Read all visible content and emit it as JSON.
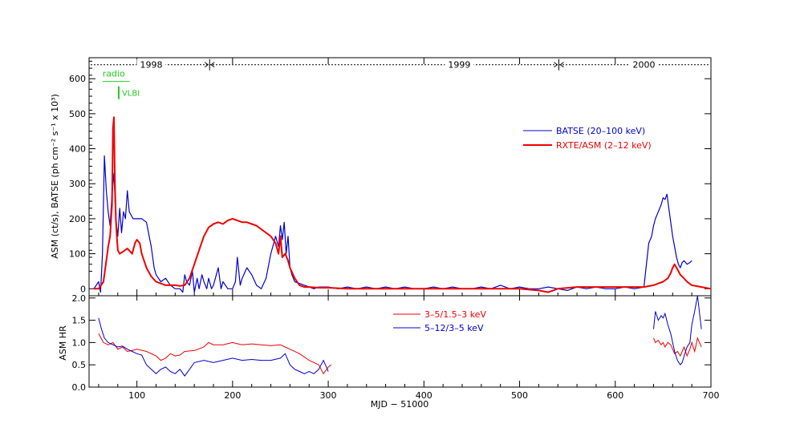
{
  "chart_data": [
    {
      "type": "line",
      "panel": "top",
      "ylabel": "ASM (ct/s), BATSE (ph cm⁻² s⁻¹ x 10³)",
      "xlim": [
        50,
        700
      ],
      "ylim": [
        -20,
        660
      ],
      "yticks": [
        0,
        100,
        200,
        300,
        400,
        500,
        600
      ],
      "tick_labels_y": [
        "0",
        "100",
        "200",
        "300",
        "400",
        "500",
        "600"
      ],
      "year_labels": [
        {
          "text": "1998",
          "x": 115
        },
        {
          "text": "1999",
          "x": 437
        },
        {
          "text": "2000",
          "x": 630
        }
      ],
      "year_boundaries": [
        176,
        541
      ],
      "year_line_y": 640,
      "annotations": {
        "radio": {
          "text": "radio",
          "x": 64,
          "y": 615
        },
        "vlbi": {
          "text": "VLBI",
          "x": 81,
          "y": 560
        }
      },
      "series": [
        {
          "name": "BATSE (20–100 keV)",
          "color": "#0000cc",
          "x": [
            55,
            60,
            62,
            64,
            66,
            68,
            70,
            72,
            74,
            76,
            78,
            80,
            82,
            84,
            86,
            88,
            90,
            92,
            94,
            96,
            100,
            105,
            110,
            115,
            118,
            120,
            125,
            130,
            135,
            140,
            145,
            148,
            150,
            152,
            155,
            158,
            160,
            163,
            165,
            168,
            170,
            173,
            175,
            178,
            180,
            183,
            185,
            188,
            190,
            195,
            200,
            203,
            205,
            208,
            210,
            215,
            220,
            225,
            230,
            235,
            240,
            245,
            248,
            250,
            252,
            254,
            256,
            258,
            260,
            262,
            265,
            270,
            275,
            280,
            285,
            290,
            300,
            310,
            320,
            330,
            340,
            350,
            360,
            370,
            380,
            390,
            400,
            410,
            420,
            430,
            440,
            450,
            460,
            470,
            480,
            490,
            500,
            510,
            520,
            530,
            540,
            550,
            560,
            570,
            580,
            590,
            600,
            610,
            620,
            630,
            635,
            638,
            640,
            642,
            645,
            648,
            650,
            652,
            654,
            656,
            658,
            660,
            662,
            664,
            666,
            668,
            670,
            672,
            675,
            678,
            680
          ],
          "y": [
            0,
            20,
            -10,
            100,
            380,
            280,
            220,
            180,
            270,
            330,
            200,
            150,
            230,
            160,
            220,
            200,
            280,
            220,
            210,
            200,
            200,
            200,
            190,
            120,
            60,
            40,
            20,
            30,
            10,
            0,
            0,
            -10,
            40,
            20,
            10,
            50,
            -10,
            30,
            0,
            40,
            20,
            0,
            30,
            0,
            10,
            40,
            60,
            0,
            20,
            0,
            0,
            20,
            90,
            10,
            30,
            60,
            40,
            10,
            0,
            30,
            100,
            150,
            120,
            180,
            140,
            190,
            100,
            150,
            60,
            40,
            20,
            15,
            10,
            5,
            0,
            5,
            5,
            0,
            5,
            0,
            5,
            0,
            5,
            0,
            5,
            0,
            0,
            5,
            0,
            5,
            0,
            0,
            5,
            0,
            10,
            0,
            5,
            0,
            0,
            5,
            0,
            -5,
            5,
            0,
            5,
            0,
            0,
            5,
            0,
            5,
            130,
            150,
            180,
            200,
            220,
            240,
            260,
            255,
            270,
            230,
            190,
            150,
            120,
            90,
            70,
            60,
            75,
            80,
            70,
            75,
            80
          ]
        },
        {
          "name": "RXTE/ASM (2–12 keV)",
          "color": "#ee0000",
          "x": [
            55,
            60,
            65,
            68,
            70,
            72,
            74,
            75,
            76,
            77,
            78,
            79,
            80,
            82,
            85,
            90,
            95,
            98,
            100,
            103,
            105,
            110,
            115,
            120,
            125,
            130,
            135,
            140,
            145,
            150,
            155,
            160,
            165,
            170,
            175,
            180,
            185,
            190,
            195,
            200,
            205,
            210,
            215,
            220,
            225,
            230,
            235,
            240,
            245,
            248,
            250,
            252,
            255,
            258,
            260,
            265,
            270,
            275,
            280,
            290,
            300,
            320,
            340,
            360,
            380,
            400,
            420,
            440,
            460,
            480,
            500,
            520,
            530,
            535,
            540,
            560,
            580,
            600,
            620,
            630,
            640,
            645,
            650,
            655,
            658,
            660,
            662,
            664,
            666,
            668,
            670,
            675,
            680,
            690,
            700
          ],
          "y": [
            0,
            0,
            20,
            80,
            120,
            150,
            240,
            460,
            490,
            300,
            200,
            150,
            110,
            100,
            105,
            115,
            100,
            130,
            140,
            130,
            100,
            60,
            35,
            20,
            15,
            10,
            10,
            10,
            8,
            10,
            30,
            70,
            110,
            150,
            175,
            185,
            190,
            185,
            195,
            200,
            195,
            190,
            190,
            185,
            180,
            170,
            160,
            150,
            130,
            100,
            150,
            90,
            100,
            80,
            60,
            30,
            10,
            5,
            5,
            3,
            3,
            0,
            0,
            0,
            0,
            0,
            0,
            0,
            0,
            0,
            0,
            -5,
            -10,
            -5,
            0,
            5,
            5,
            5,
            5,
            5,
            10,
            15,
            20,
            30,
            45,
            60,
            70,
            60,
            50,
            40,
            35,
            20,
            10,
            5,
            0
          ]
        }
      ]
    },
    {
      "type": "line",
      "panel": "bottom",
      "xlabel": "MJD − 51000",
      "ylabel": "ASM HR",
      "xlim": [
        50,
        700
      ],
      "ylim": [
        0,
        2.05
      ],
      "yticks": [
        0,
        0.5,
        1.0,
        1.5,
        2.0
      ],
      "tick_labels_y": [
        "0.0",
        "0.5",
        "1.0",
        "1.5",
        "2.0"
      ],
      "xticks": [
        100,
        200,
        300,
        400,
        500,
        600,
        700
      ],
      "tick_labels_x": [
        "100",
        "200",
        "300",
        "400",
        "500",
        "600",
        "700"
      ],
      "series": [
        {
          "name": "3–5/1.5–3 keV",
          "color": "#ee0000",
          "segments": [
            {
              "x": [
                60,
                65,
                70,
                75,
                80,
                85,
                90,
                95,
                100,
                110,
                120,
                125,
                130,
                135,
                140,
                145,
                150,
                160,
                170,
                175,
                180,
                190,
                200,
                210,
                220,
                230,
                240,
                250,
                255,
                260,
                270,
                280,
                290,
                295,
                300,
                303
              ],
              "y": [
                1.2,
                1.0,
                0.95,
                1.0,
                0.85,
                0.9,
                0.8,
                0.82,
                0.85,
                0.8,
                0.7,
                0.6,
                0.65,
                0.75,
                0.7,
                0.72,
                0.8,
                0.82,
                0.9,
                1.0,
                0.95,
                0.95,
                1.0,
                0.95,
                0.97,
                0.95,
                0.93,
                0.95,
                0.9,
                0.85,
                0.75,
                0.6,
                0.5,
                0.3,
                0.45,
                0.5
              ]
            },
            {
              "x": [
                640,
                642,
                645,
                648,
                650,
                652,
                655,
                658,
                660,
                662,
                665,
                668,
                670,
                672,
                675,
                678,
                680,
                683,
                686,
                690
              ],
              "y": [
                1.1,
                1.0,
                1.05,
                0.95,
                1.0,
                0.9,
                1.0,
                0.95,
                0.85,
                0.75,
                0.8,
                0.7,
                0.8,
                0.9,
                0.7,
                0.85,
                1.0,
                0.8,
                1.1,
                0.9
              ]
            }
          ]
        },
        {
          "name": "5–12/3–5 keV",
          "color": "#0000cc",
          "segments": [
            {
              "x": [
                60,
                63,
                66,
                70,
                75,
                80,
                85,
                90,
                95,
                100,
                105,
                110,
                115,
                120,
                125,
                130,
                135,
                140,
                145,
                150,
                155,
                160,
                170,
                180,
                190,
                200,
                210,
                220,
                230,
                240,
                250,
                255,
                260,
                265,
                270,
                275,
                280,
                285,
                290,
                295,
                300
              ],
              "y": [
                1.55,
                1.3,
                1.1,
                1.0,
                0.95,
                0.9,
                0.92,
                0.85,
                0.8,
                0.75,
                0.72,
                0.5,
                0.4,
                0.3,
                0.4,
                0.45,
                0.35,
                0.3,
                0.4,
                0.25,
                0.4,
                0.55,
                0.6,
                0.55,
                0.6,
                0.65,
                0.6,
                0.62,
                0.6,
                0.6,
                0.65,
                0.75,
                0.5,
                0.4,
                0.35,
                0.3,
                0.35,
                0.3,
                0.4,
                0.6,
                0.35
              ]
            },
            {
              "x": [
                640,
                642,
                645,
                648,
                650,
                652,
                655,
                658,
                660,
                662,
                665,
                668,
                670,
                672,
                675,
                678,
                680,
                683,
                686,
                690
              ],
              "y": [
                1.3,
                1.7,
                1.5,
                1.6,
                1.55,
                1.65,
                1.4,
                1.2,
                1.0,
                0.8,
                0.6,
                0.5,
                0.55,
                0.7,
                0.9,
                1.0,
                1.4,
                1.7,
                2.05,
                1.3
              ]
            }
          ]
        }
      ]
    }
  ]
}
